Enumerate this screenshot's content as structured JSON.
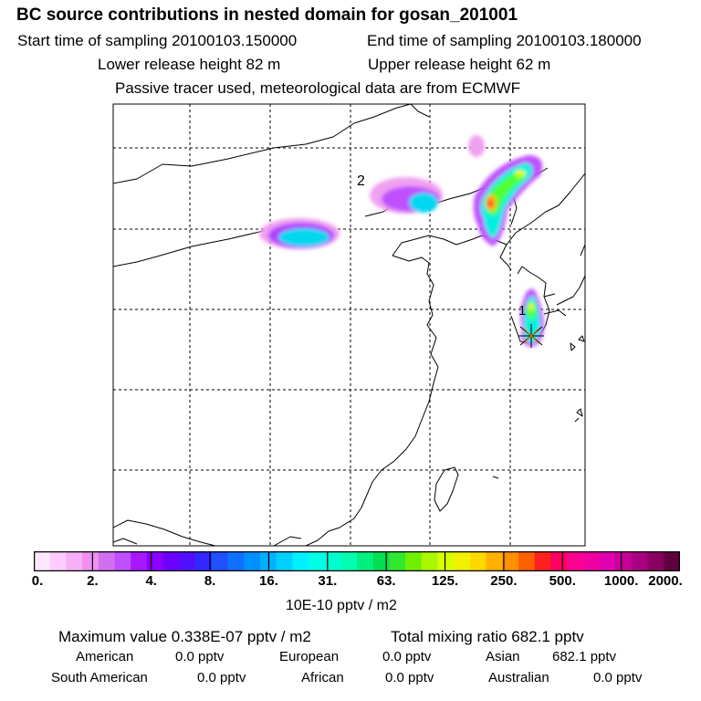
{
  "title": "BC  source contributions in nested domain for gosan_201001",
  "sampling": {
    "start_label": "Start time of sampling 20100103.150000",
    "end_label": "End time of sampling 20100103.180000"
  },
  "release": {
    "lower_label": "Lower release height   82 m",
    "upper_label": "Upper release height   62 m"
  },
  "tracer_note": "Passive tracer used, meteorological data are from ECMWF",
  "map": {
    "labels": {
      "release_point": "1",
      "point_2": "2"
    },
    "plume_colors": [
      "#ff9ce6",
      "#d452ff",
      "#a000ff",
      "#00d0e8",
      "#00ffd0",
      "#50ff30",
      "#d8ff00",
      "#ffb000",
      "#ff3030"
    ]
  },
  "colorbar": {
    "ticks": [
      "0.",
      "2.",
      "4.",
      "8.",
      "16.",
      "31.",
      "63.",
      "125.",
      "250.",
      "500.",
      "1000.",
      "2000."
    ],
    "colors": [
      "#ffe6ff",
      "#ffccff",
      "#f7b0f7",
      "#f090f0",
      "#d070f0",
      "#c050ff",
      "#a818ff",
      "#8c00ff",
      "#6c00ff",
      "#5010ff",
      "#3028ff",
      "#2050ff",
      "#1070ff",
      "#0090ff",
      "#00b0ff",
      "#00d0ff",
      "#00f0ff",
      "#00ffe8",
      "#00ffd0",
      "#00ffb0",
      "#00f080",
      "#00e050",
      "#30e830",
      "#70f000",
      "#a8f800",
      "#d8ff00",
      "#f0f000",
      "#ffd800",
      "#ffb000",
      "#ff9000",
      "#ff6000",
      "#ff2020",
      "#ff0060",
      "#ff0090",
      "#f000a0",
      "#e000b0",
      "#c80098",
      "#a80080",
      "#880060",
      "#600040"
    ],
    "unit_label": "10E-10 pptv / m2"
  },
  "stats": {
    "max_label": "Maximum value  0.338E-07 pptv / m2",
    "total_label": "Total mixing ratio      682.1 pptv",
    "rows": [
      {
        "american": "American",
        "american_val": "0.0 pptv",
        "european": "European",
        "european_val": "0.0 pptv",
        "asian": "Asian",
        "asian_val": "682.1 pptv"
      },
      {
        "south_american": "South American",
        "south_american_val": "0.0 pptv",
        "african": "African",
        "african_val": "0.0 pptv",
        "australian": "Australian",
        "australian_val": "0.0 pptv"
      }
    ]
  }
}
